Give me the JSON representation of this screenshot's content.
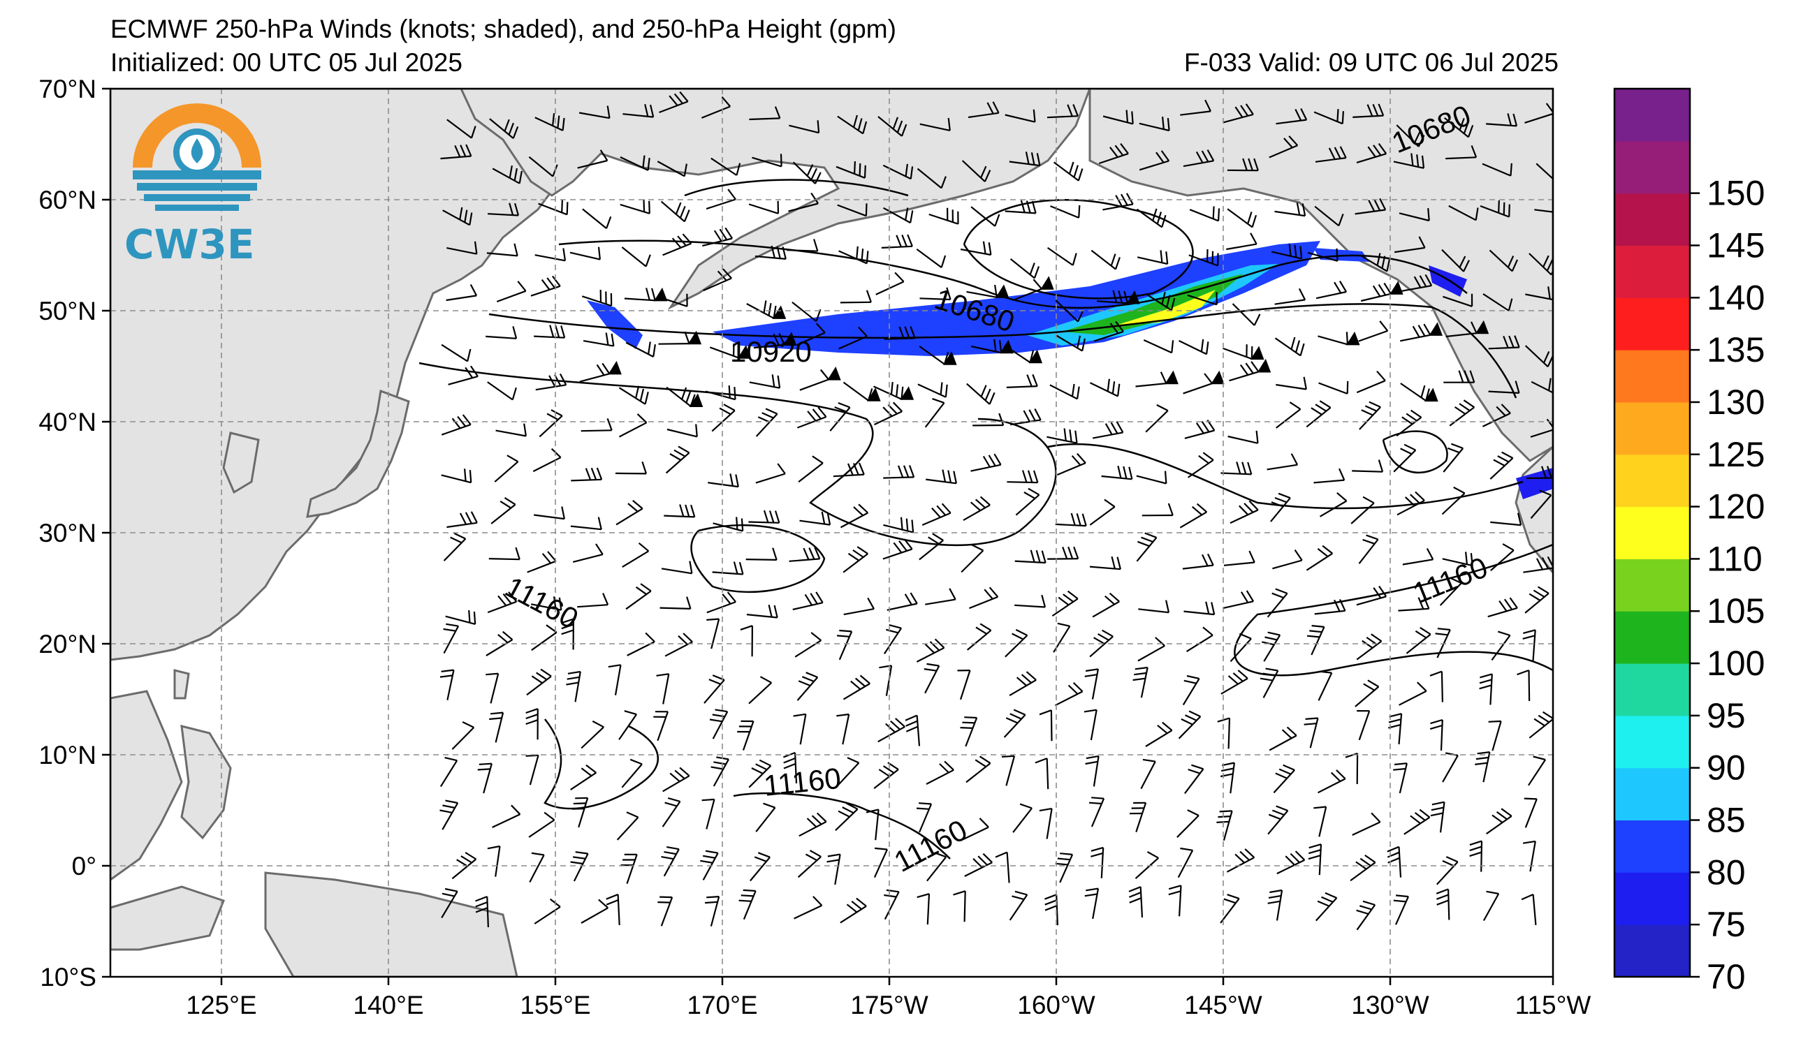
{
  "header": {
    "title": "ECMWF 250-hPa Winds (knots; shaded), and 250-hPa Height (gpm)",
    "initialized": "Initialized: 00 UTC 05 Jul 2025",
    "valid": "F-033  Valid: 09 UTC 06 Jul 2025"
  },
  "logo": {
    "text": "CW3E"
  },
  "axes": {
    "lat_labels": [
      "70°N",
      "60°N",
      "50°N",
      "40°N",
      "30°N",
      "20°N",
      "10°N",
      "0°",
      "10°S"
    ],
    "lon_labels": [
      "125°E",
      "140°E",
      "155°E",
      "170°E",
      "175°W",
      "160°W",
      "145°W",
      "130°W",
      "115°W"
    ]
  },
  "contour_labels": [
    "10680",
    "10920",
    "10680",
    "11160",
    "11160",
    "11160",
    "11160"
  ],
  "colorbar": {
    "labels": [
      "70",
      "75",
      "80",
      "85",
      "90",
      "95",
      "100",
      "105",
      "110",
      "120",
      "125",
      "130",
      "135",
      "140",
      "145",
      "150"
    ],
    "colors": [
      "#2323c8",
      "#1e1ef0",
      "#1e40ff",
      "#1ec8ff",
      "#1ef0f0",
      "#1ed8a0",
      "#1eb41e",
      "#78d21e",
      "#ffff1e",
      "#ffd21e",
      "#ffaa1e",
      "#ff781e",
      "#ff1e1e",
      "#dc1e3c",
      "#b4144b",
      "#961e78",
      "#78208c"
    ]
  },
  "map_colors": {
    "land": "#e3e3e3",
    "coast": "#6b6b6b",
    "grid": "#8c8c8c"
  }
}
